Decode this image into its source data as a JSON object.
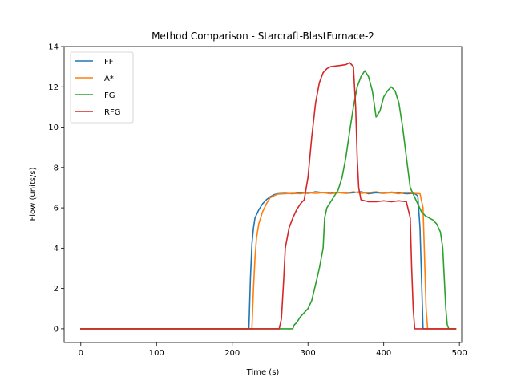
{
  "chart_data": {
    "type": "line",
    "title": "Method Comparison - Starcraft-BlastFurnace-2",
    "xlabel": "Time (s)",
    "ylabel": "Flow (units/s)",
    "xlim": [
      -22,
      503
    ],
    "ylim": [
      -0.68,
      14.0
    ],
    "xticks": [
      0,
      100,
      200,
      300,
      400,
      500
    ],
    "yticks": [
      0,
      2,
      4,
      6,
      8,
      10,
      12,
      14
    ],
    "legend_position": "top-left",
    "grid": false,
    "series": [
      {
        "name": "FF",
        "color": "#1f77b4",
        "points": [
          [
            0,
            0
          ],
          [
            220,
            0
          ],
          [
            222,
            0
          ],
          [
            224,
            2.5
          ],
          [
            226,
            4.2
          ],
          [
            228,
            5.0
          ],
          [
            230,
            5.5
          ],
          [
            235,
            5.9
          ],
          [
            240,
            6.2
          ],
          [
            245,
            6.4
          ],
          [
            250,
            6.55
          ],
          [
            255,
            6.65
          ],
          [
            260,
            6.7
          ],
          [
            270,
            6.72
          ],
          [
            280,
            6.7
          ],
          [
            290,
            6.75
          ],
          [
            300,
            6.72
          ],
          [
            310,
            6.8
          ],
          [
            320,
            6.75
          ],
          [
            330,
            6.72
          ],
          [
            340,
            6.78
          ],
          [
            350,
            6.72
          ],
          [
            360,
            6.75
          ],
          [
            370,
            6.8
          ],
          [
            380,
            6.7
          ],
          [
            390,
            6.75
          ],
          [
            400,
            6.72
          ],
          [
            410,
            6.78
          ],
          [
            420,
            6.75
          ],
          [
            430,
            6.7
          ],
          [
            440,
            6.72
          ],
          [
            445,
            6.6
          ],
          [
            448,
            5.0
          ],
          [
            450,
            2.5
          ],
          [
            452,
            0
          ],
          [
            460,
            0
          ],
          [
            495,
            0
          ]
        ]
      },
      {
        "name": "A*",
        "color": "#ff7f0e",
        "points": [
          [
            0,
            0
          ],
          [
            224,
            0
          ],
          [
            226,
            0
          ],
          [
            228,
            2.0
          ],
          [
            230,
            3.5
          ],
          [
            232,
            4.5
          ],
          [
            235,
            5.2
          ],
          [
            240,
            5.8
          ],
          [
            245,
            6.2
          ],
          [
            250,
            6.5
          ],
          [
            255,
            6.6
          ],
          [
            260,
            6.68
          ],
          [
            270,
            6.7
          ],
          [
            280,
            6.72
          ],
          [
            290,
            6.7
          ],
          [
            300,
            6.75
          ],
          [
            310,
            6.72
          ],
          [
            320,
            6.75
          ],
          [
            330,
            6.7
          ],
          [
            340,
            6.75
          ],
          [
            350,
            6.72
          ],
          [
            360,
            6.8
          ],
          [
            370,
            6.72
          ],
          [
            380,
            6.75
          ],
          [
            390,
            6.8
          ],
          [
            400,
            6.72
          ],
          [
            410,
            6.75
          ],
          [
            420,
            6.7
          ],
          [
            430,
            6.78
          ],
          [
            440,
            6.72
          ],
          [
            448,
            6.7
          ],
          [
            452,
            6.0
          ],
          [
            454,
            3.5
          ],
          [
            456,
            1.0
          ],
          [
            458,
            0
          ],
          [
            470,
            0
          ],
          [
            495,
            0
          ]
        ]
      },
      {
        "name": "FG",
        "color": "#2ca02c",
        "points": [
          [
            0,
            0
          ],
          [
            280,
            0
          ],
          [
            282,
            0.2
          ],
          [
            285,
            0.3
          ],
          [
            290,
            0.6
          ],
          [
            295,
            0.8
          ],
          [
            300,
            1.0
          ],
          [
            305,
            1.4
          ],
          [
            310,
            2.2
          ],
          [
            315,
            3.0
          ],
          [
            320,
            4.0
          ],
          [
            322,
            5.5
          ],
          [
            325,
            6.0
          ],
          [
            330,
            6.3
          ],
          [
            335,
            6.6
          ],
          [
            340,
            6.9
          ],
          [
            345,
            7.5
          ],
          [
            350,
            8.5
          ],
          [
            355,
            9.8
          ],
          [
            360,
            11.0
          ],
          [
            365,
            12.0
          ],
          [
            370,
            12.5
          ],
          [
            375,
            12.8
          ],
          [
            380,
            12.5
          ],
          [
            385,
            11.8
          ],
          [
            390,
            10.5
          ],
          [
            395,
            10.8
          ],
          [
            400,
            11.5
          ],
          [
            405,
            11.8
          ],
          [
            410,
            12.0
          ],
          [
            415,
            11.8
          ],
          [
            420,
            11.2
          ],
          [
            425,
            10.0
          ],
          [
            430,
            8.5
          ],
          [
            435,
            7.0
          ],
          [
            440,
            6.6
          ],
          [
            445,
            6.2
          ],
          [
            450,
            5.8
          ],
          [
            455,
            5.6
          ],
          [
            460,
            5.5
          ],
          [
            465,
            5.4
          ],
          [
            470,
            5.2
          ],
          [
            475,
            4.8
          ],
          [
            478,
            4.0
          ],
          [
            480,
            2.5
          ],
          [
            482,
            1.0
          ],
          [
            484,
            0.2
          ],
          [
            486,
            0
          ],
          [
            495,
            0
          ]
        ]
      },
      {
        "name": "RFG",
        "color": "#d62728",
        "points": [
          [
            0,
            0
          ],
          [
            262,
            0
          ],
          [
            265,
            0.5
          ],
          [
            268,
            2.5
          ],
          [
            270,
            4.0
          ],
          [
            275,
            5.0
          ],
          [
            280,
            5.5
          ],
          [
            285,
            5.9
          ],
          [
            290,
            6.2
          ],
          [
            295,
            6.4
          ],
          [
            300,
            7.5
          ],
          [
            305,
            9.5
          ],
          [
            310,
            11.2
          ],
          [
            315,
            12.2
          ],
          [
            320,
            12.7
          ],
          [
            325,
            12.9
          ],
          [
            330,
            13.0
          ],
          [
            340,
            13.05
          ],
          [
            350,
            13.1
          ],
          [
            355,
            13.2
          ],
          [
            360,
            13.0
          ],
          [
            363,
            11.0
          ],
          [
            365,
            8.5
          ],
          [
            367,
            7.0
          ],
          [
            370,
            6.4
          ],
          [
            380,
            6.3
          ],
          [
            390,
            6.3
          ],
          [
            400,
            6.35
          ],
          [
            410,
            6.3
          ],
          [
            420,
            6.35
          ],
          [
            430,
            6.3
          ],
          [
            435,
            5.5
          ],
          [
            437,
            3.0
          ],
          [
            439,
            1.0
          ],
          [
            441,
            0
          ],
          [
            450,
            0
          ],
          [
            495,
            0
          ]
        ]
      }
    ]
  }
}
